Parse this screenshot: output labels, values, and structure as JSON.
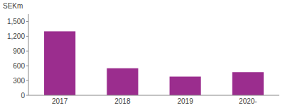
{
  "chart_data": {
    "type": "bar",
    "ylabel": "SEKm",
    "categories": [
      "2017",
      "2018",
      "2019",
      "2020-"
    ],
    "values": [
      1300,
      550,
      380,
      470
    ],
    "color": "#9B2D8E",
    "ylim": [
      0,
      1650
    ],
    "yticks": [
      0,
      300,
      600,
      900,
      {
        "value": 1200,
        "label": "1,200"
      },
      {
        "value": 1500,
        "label": "1,500"
      }
    ],
    "grid": false
  }
}
